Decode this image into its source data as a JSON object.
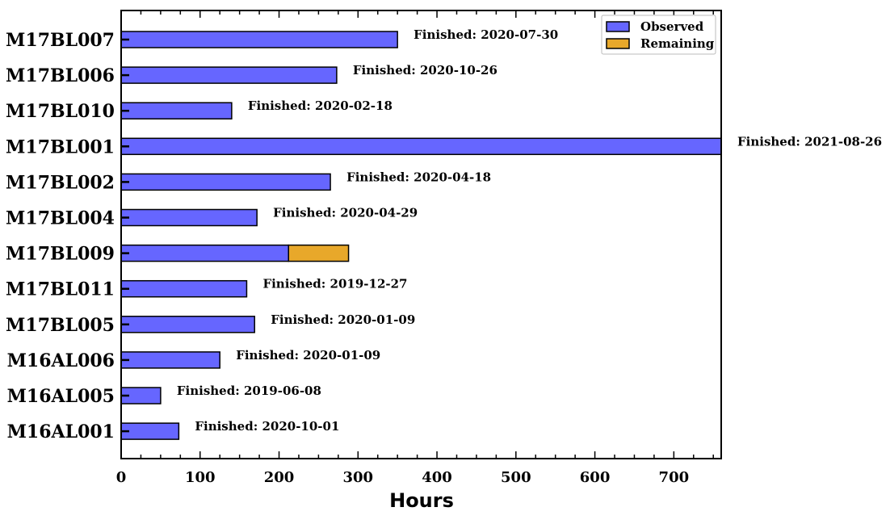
{
  "chart_data": {
    "type": "bar",
    "orientation": "horizontal",
    "stacked": true,
    "categories": [
      "M17BL007",
      "M17BL006",
      "M17BL010",
      "M17BL001",
      "M17BL002",
      "M17BL004",
      "M17BL009",
      "M17BL011",
      "M17BL005",
      "M16AL006",
      "M16AL005",
      "M16AL001"
    ],
    "series": [
      {
        "name": "Observed",
        "color": "#6666ff",
        "values": [
          350,
          273,
          140,
          760,
          265,
          172,
          212,
          159,
          169,
          125,
          50,
          73
        ]
      },
      {
        "name": "Remaining",
        "color": "#e8a82a",
        "values": [
          0,
          0,
          0,
          0,
          0,
          0,
          76,
          0,
          0,
          0,
          0,
          0
        ]
      }
    ],
    "annotations": [
      "Finished: 2020-07-30",
      "Finished: 2020-10-26",
      "Finished: 2020-02-18",
      "Finished: 2021-08-26",
      "Finished: 2020-04-18",
      "Finished: 2020-04-29",
      "",
      "Finished: 2019-12-27",
      "Finished: 2020-01-09",
      "Finished: 2020-01-09",
      "Finished: 2019-06-08",
      "Finished: 2020-10-01"
    ],
    "xlabel": "Hours",
    "ylabel": "",
    "xlim": [
      0,
      760
    ],
    "xticks": [
      0,
      100,
      200,
      300,
      400,
      500,
      600,
      700
    ],
    "legend": "top-right",
    "grid": false
  }
}
